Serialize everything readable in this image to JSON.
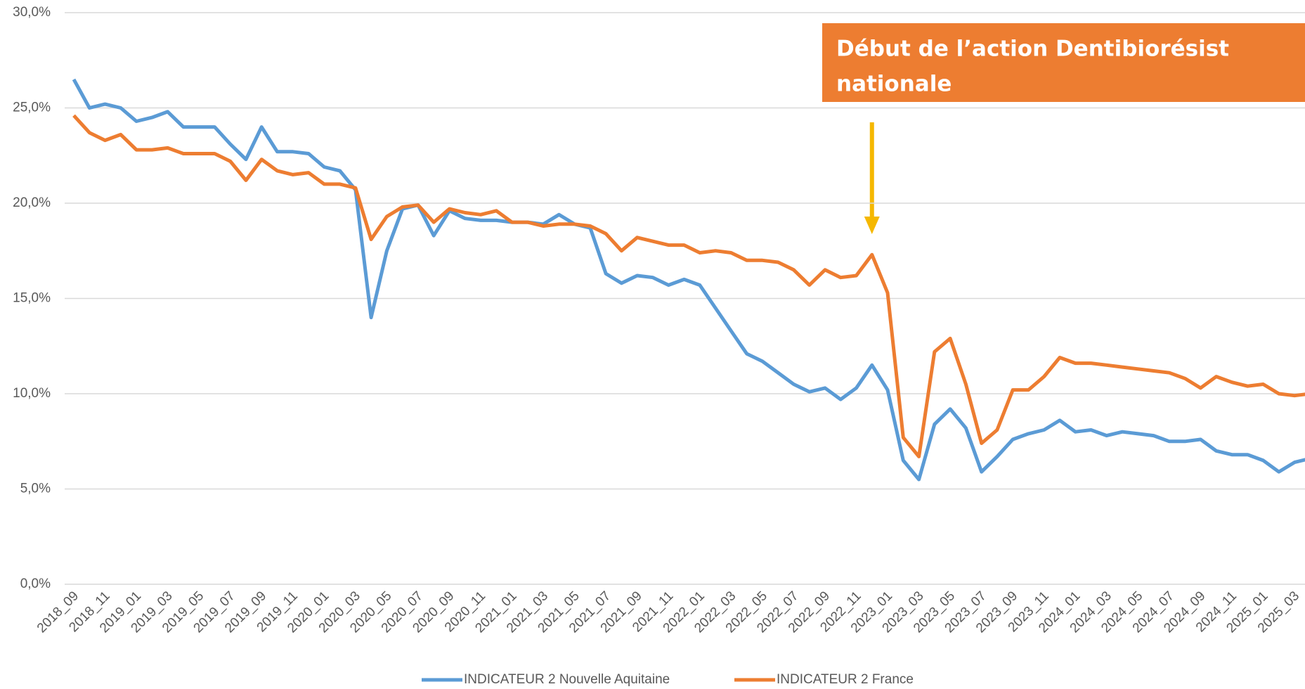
{
  "chart_data": {
    "type": "line",
    "annotation": [
      "Début de l’action Dentibiorésist",
      "nationale"
    ],
    "categories": [
      "2018_09",
      null,
      "2018_11",
      null,
      "2019_01",
      null,
      "2019_03",
      null,
      "2019_05",
      null,
      "2019_07",
      null,
      "2019_09",
      null,
      "2019_11",
      null,
      "2020_01",
      null,
      "2020_03",
      null,
      "2020_05",
      null,
      "2020_07",
      null,
      "2020_09",
      null,
      "2020_11",
      null,
      "2021_01",
      null,
      "2021_03",
      null,
      "2021_05",
      null,
      "2021_07",
      null,
      "2021_09",
      null,
      "2021_11",
      null,
      "2022_01",
      null,
      "2022_03",
      null,
      "2022_05",
      null,
      "2022_07",
      null,
      "2022_09",
      null,
      "2022_11",
      null,
      "2023_01",
      null,
      "2023_03",
      null,
      "2023_05",
      null,
      "2023_07",
      null,
      "2023_09",
      null,
      "2023_11",
      null,
      "2024_01",
      null,
      "2024_03",
      null,
      "2024_05",
      null,
      "2024_07",
      null,
      "2024_09",
      null,
      "2024_11",
      null,
      "2025_01",
      null,
      "2025_03",
      null
    ],
    "series": [
      {
        "name": "INDICATEUR 2 Nouvelle Aquitaine",
        "color": "#5b9bd5",
        "values": [
          26.5,
          25.0,
          25.2,
          25.0,
          24.3,
          24.5,
          24.8,
          24.0,
          24.0,
          24.0,
          23.1,
          22.3,
          24.0,
          22.7,
          22.7,
          22.6,
          21.9,
          21.7,
          20.7,
          14.0,
          17.5,
          19.7,
          19.9,
          18.3,
          19.6,
          19.2,
          19.1,
          19.1,
          19.0,
          19.0,
          18.9,
          19.4,
          18.9,
          18.7,
          16.3,
          15.8,
          16.2,
          16.1,
          15.7,
          16.0,
          15.7,
          14.5,
          13.3,
          12.1,
          11.7,
          11.1,
          10.5,
          10.1,
          10.3,
          9.7,
          10.3,
          11.5,
          10.2,
          6.5,
          5.5,
          8.4,
          9.2,
          8.2,
          5.9,
          6.7,
          7.6,
          7.9,
          8.1,
          8.6,
          8.0,
          8.1,
          7.8,
          8.0,
          7.9,
          7.8,
          7.5,
          7.5,
          7.6,
          7.0,
          6.8,
          6.8,
          6.5,
          5.9,
          6.4,
          6.6
        ]
      },
      {
        "name": "INDICATEUR 2 France",
        "color": "#ed7d31",
        "values": [
          24.6,
          23.7,
          23.3,
          23.6,
          22.8,
          22.8,
          22.9,
          22.6,
          22.6,
          22.6,
          22.2,
          21.2,
          22.3,
          21.7,
          21.5,
          21.6,
          21.0,
          21.0,
          20.8,
          18.1,
          19.3,
          19.8,
          19.9,
          19.0,
          19.7,
          19.5,
          19.4,
          19.6,
          19.0,
          19.0,
          18.8,
          18.9,
          18.9,
          18.8,
          18.4,
          17.5,
          18.2,
          18.0,
          17.8,
          17.8,
          17.4,
          17.5,
          17.4,
          17.0,
          17.0,
          16.9,
          16.5,
          15.7,
          16.5,
          16.1,
          16.2,
          17.3,
          15.3,
          7.7,
          6.7,
          12.2,
          12.9,
          10.5,
          7.4,
          8.1,
          10.2,
          10.2,
          10.9,
          11.9,
          11.6,
          11.6,
          11.5,
          11.4,
          11.3,
          11.2,
          11.1,
          10.8,
          10.3,
          10.9,
          10.6,
          10.4,
          10.5,
          10.0,
          9.9,
          10.0
        ]
      }
    ],
    "ylim": [
      0,
      30
    ],
    "yticks": [
      {
        "value": 0,
        "label": "0,0%"
      },
      {
        "value": 5,
        "label": "5,0%"
      },
      {
        "value": 10,
        "label": "10,0%"
      },
      {
        "value": 15,
        "label": "15,0%"
      },
      {
        "value": 20,
        "label": "20,0%"
      },
      {
        "value": 25,
        "label": "25,0%"
      },
      {
        "value": 30,
        "label": "30,0%"
      }
    ],
    "grid": true,
    "legend": "bottom"
  }
}
